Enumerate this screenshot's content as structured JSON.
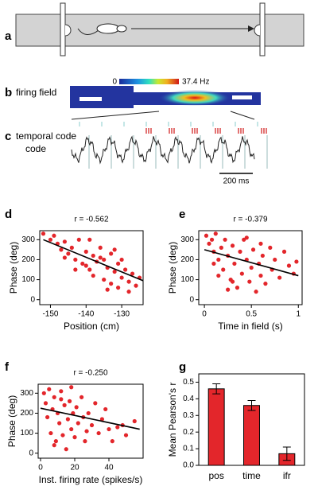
{
  "panel_a": {
    "letter": "a"
  },
  "panel_b": {
    "letter": "b",
    "label": "firing field",
    "scale_min": "0",
    "scale_max": "37.4 Hz"
  },
  "panel_c": {
    "letter": "c",
    "label": "temporal code",
    "scale_bar": "200 ms"
  },
  "chart_data": [
    {
      "type": "scatter",
      "letter": "d",
      "title": "r = -0.562",
      "x_label": "Position (cm)",
      "y_label": "Phase  (deg)",
      "color": "#e3262b",
      "xlim": [
        -153,
        -124
      ],
      "xticks": [
        -150,
        -140,
        -130
      ],
      "ylim": [
        -25,
        345
      ],
      "yticks": [
        0,
        100,
        200,
        300
      ],
      "x": [
        -152,
        -150,
        -149,
        -148,
        -147,
        -146,
        -145,
        -144,
        -143,
        -142,
        -141,
        -140,
        -139,
        -138,
        -138,
        -137,
        -136,
        -135,
        -135,
        -134,
        -133,
        -133,
        -132,
        -131,
        -131,
        -130,
        -129,
        -128,
        -128,
        -127,
        -126,
        -125,
        -140,
        -136,
        -132,
        -146,
        -143,
        -139,
        -130,
        -134
      ],
      "y": [
        330,
        300,
        320,
        280,
        250,
        290,
        230,
        260,
        200,
        300,
        180,
        240,
        150,
        220,
        120,
        190,
        260,
        100,
        200,
        160,
        80,
        230,
        140,
        60,
        180,
        110,
        150,
        40,
        90,
        130,
        70,
        110,
        170,
        210,
        250,
        210,
        150,
        300,
        200,
        50
      ],
      "trend": {
        "x": [
          -152,
          -124
        ],
        "y": [
          300,
          95
        ]
      }
    },
    {
      "type": "scatter",
      "letter": "e",
      "title": "r = -0.379",
      "x_label": "Time in field (s)",
      "y_label": "Phase  (deg)",
      "color": "#e3262b",
      "xlim": [
        -0.06,
        1.04
      ],
      "xticks": [
        0,
        0.5,
        1
      ],
      "ylim": [
        -25,
        345
      ],
      "yticks": [
        0,
        100,
        200,
        300
      ],
      "x": [
        0.02,
        0.05,
        0.08,
        0.1,
        0.12,
        0.15,
        0.18,
        0.2,
        0.22,
        0.25,
        0.28,
        0.3,
        0.32,
        0.35,
        0.38,
        0.4,
        0.42,
        0.45,
        0.48,
        0.5,
        0.52,
        0.55,
        0.58,
        0.6,
        0.62,
        0.65,
        0.7,
        0.72,
        0.75,
        0.8,
        0.85,
        0.9,
        0.95,
        0.98,
        0.1,
        0.3,
        0.45,
        0.6,
        0.25,
        0.15
      ],
      "y": [
        320,
        280,
        300,
        240,
        330,
        200,
        260,
        150,
        300,
        220,
        100,
        270,
        180,
        60,
        240,
        130,
        300,
        200,
        90,
        160,
        250,
        40,
        180,
        120,
        220,
        80,
        260,
        150,
        200,
        110,
        240,
        170,
        130,
        190,
        180,
        90,
        310,
        280,
        50,
        120
      ],
      "trend": {
        "x": [
          0,
          1
        ],
        "y": [
          250,
          120
        ]
      }
    },
    {
      "type": "scatter",
      "letter": "f",
      "title": "r = -0.250",
      "x_label": "Inst. firing rate (spikes/s)",
      "y_label": "Phase  (deg)",
      "color": "#e3262b",
      "xlim": [
        -1.4,
        60
      ],
      "xticks": [
        0,
        20,
        40
      ],
      "ylim": [
        -25,
        345
      ],
      "yticks": [
        0,
        100,
        200,
        300
      ],
      "x": [
        2,
        3,
        4,
        5,
        6,
        7,
        8,
        9,
        10,
        11,
        12,
        13,
        14,
        15,
        16,
        17,
        18,
        19,
        20,
        21,
        22,
        24,
        25,
        26,
        28,
        30,
        32,
        34,
        36,
        38,
        40,
        42,
        45,
        48,
        50,
        55,
        8,
        12,
        18,
        27
      ],
      "y": [
        300,
        250,
        180,
        320,
        100,
        220,
        280,
        60,
        200,
        150,
        310,
        90,
        240,
        20,
        170,
        260,
        120,
        200,
        80,
        230,
        150,
        280,
        180,
        60,
        200,
        140,
        250,
        100,
        170,
        220,
        120,
        60,
        130,
        140,
        90,
        160,
        40,
        270,
        330,
        110
      ],
      "trend": {
        "x": [
          0,
          58
        ],
        "y": [
          225,
          120
        ]
      }
    },
    {
      "type": "bar",
      "letter": "g",
      "y_label": "Mean  Pearson's  r",
      "color": "#e3262b",
      "categories": [
        "pos",
        "time",
        "ifr"
      ],
      "values": [
        0.46,
        0.36,
        0.07
      ],
      "errors": [
        0.03,
        0.03,
        0.04
      ],
      "ylim": [
        0,
        0.55
      ],
      "yticks": [
        {
          "value": 0,
          "label": "0.0"
        },
        0.1,
        0.2,
        0.3,
        0.4,
        0.5
      ]
    }
  ]
}
